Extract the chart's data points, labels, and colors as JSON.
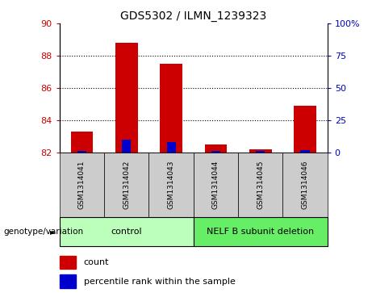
{
  "title": "GDS5302 / ILMN_1239323",
  "samples": [
    "GSM1314041",
    "GSM1314042",
    "GSM1314043",
    "GSM1314044",
    "GSM1314045",
    "GSM1314046"
  ],
  "count_values": [
    83.3,
    88.8,
    87.5,
    82.5,
    82.2,
    84.9
  ],
  "percentile_values": [
    82.1,
    82.8,
    82.65,
    82.1,
    82.1,
    82.15
  ],
  "ylim_left": [
    82,
    90
  ],
  "ylim_right": [
    0,
    100
  ],
  "yticks_left": [
    82,
    84,
    86,
    88,
    90
  ],
  "yticks_right": [
    0,
    25,
    50,
    75,
    100
  ],
  "ytick_right_labels": [
    "0",
    "25",
    "50",
    "75",
    "100%"
  ],
  "bar_width": 0.5,
  "red_color": "#cc0000",
  "blue_color": "#0000cc",
  "left_tick_color": "#cc0000",
  "right_tick_color": "#0000cc",
  "grid_dotted_at": [
    84,
    86,
    88
  ],
  "groups": [
    {
      "label": "control",
      "indices": [
        0,
        1,
        2
      ],
      "color": "#bbffbb"
    },
    {
      "label": "NELF B subunit deletion",
      "indices": [
        3,
        4,
        5
      ],
      "color": "#66ee66"
    }
  ],
  "group_label_text": "genotype/variation",
  "legend_count_label": "count",
  "legend_percentile_label": "percentile rank within the sample",
  "base_value": 82,
  "sample_cell_color": "#cccccc",
  "n_samples": 6
}
